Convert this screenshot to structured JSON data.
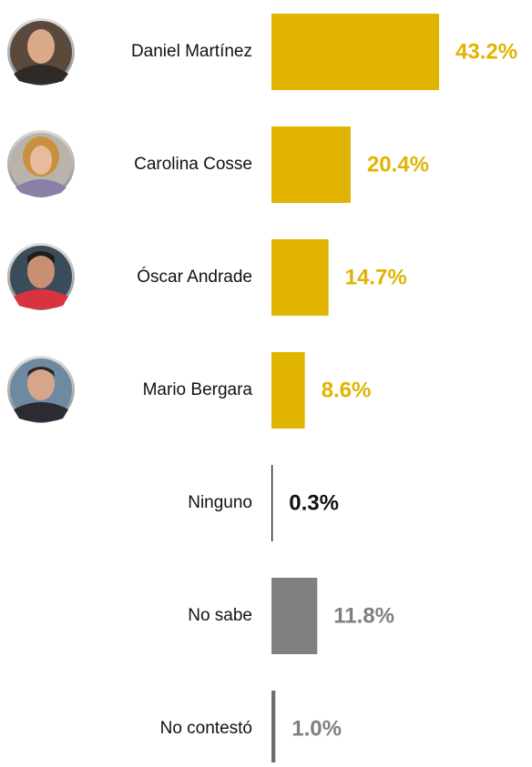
{
  "chart_data": {
    "type": "bar",
    "orientation": "horizontal",
    "categories": [
      "Daniel Martínez",
      "Carolina Cosse",
      "Óscar Andrade",
      "Mario Bergara",
      "Ninguno",
      "No sabe",
      "No contestó"
    ],
    "values": [
      43.2,
      20.4,
      14.7,
      8.6,
      0.3,
      11.8,
      1.0
    ],
    "value_labels": [
      "43.2%",
      "20.4%",
      "14.7%",
      "8.6%",
      "0.3%",
      "11.8%",
      "1.0%"
    ],
    "colors": [
      "#e0b400",
      "#e0b400",
      "#e0b400",
      "#e0b400",
      "#111111",
      "#808080",
      "#6e6e6e"
    ],
    "label_colors": [
      "#e0b400",
      "#e0b400",
      "#e0b400",
      "#e0b400",
      "#111111",
      "#808080",
      "#808080"
    ]
  }
}
